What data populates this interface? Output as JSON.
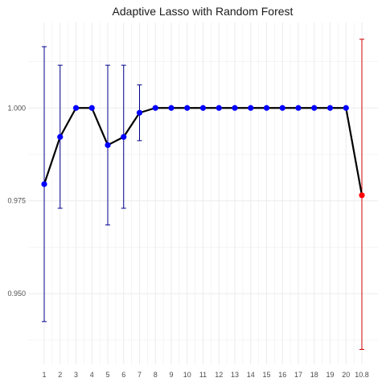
{
  "chart_data": {
    "type": "line",
    "title": "Adaptive Lasso with Random Forest",
    "xlabel": "",
    "ylabel": "",
    "categories": [
      "1",
      "2",
      "3",
      "4",
      "5",
      "6",
      "7",
      "8",
      "9",
      "10",
      "11",
      "12",
      "13",
      "14",
      "15",
      "16",
      "17",
      "18",
      "19",
      "20",
      "10.8"
    ],
    "values": [
      0.9795,
      0.9922,
      1.0,
      1.0,
      0.99,
      0.9922,
      0.9987,
      1.0,
      1.0,
      1.0,
      1.0,
      1.0,
      1.0,
      1.0,
      1.0,
      1.0,
      1.0,
      1.0,
      1.0,
      1.0,
      0.9765
    ],
    "error_low": [
      0.9425,
      0.973,
      null,
      null,
      0.9685,
      0.973,
      0.9912,
      null,
      null,
      null,
      null,
      null,
      null,
      null,
      null,
      null,
      null,
      null,
      null,
      null,
      0.935
    ],
    "error_high": [
      1.0165,
      1.0115,
      null,
      null,
      1.0115,
      1.0115,
      1.0062,
      null,
      null,
      null,
      null,
      null,
      null,
      null,
      null,
      null,
      null,
      null,
      null,
      null,
      1.0185
    ],
    "highlight_index": 20,
    "y_ticks": [
      "0.950",
      "0.975",
      "1.000"
    ],
    "ylim": [
      0.931,
      1.023
    ],
    "grid": true,
    "colors": {
      "line": "#000000",
      "point": "#0000ff",
      "errorbar": "#00008b",
      "highlight_point": "#ff0000",
      "highlight_errorbar": "#cc0000",
      "grid": "#ebebeb",
      "background": "#ffffff"
    }
  }
}
